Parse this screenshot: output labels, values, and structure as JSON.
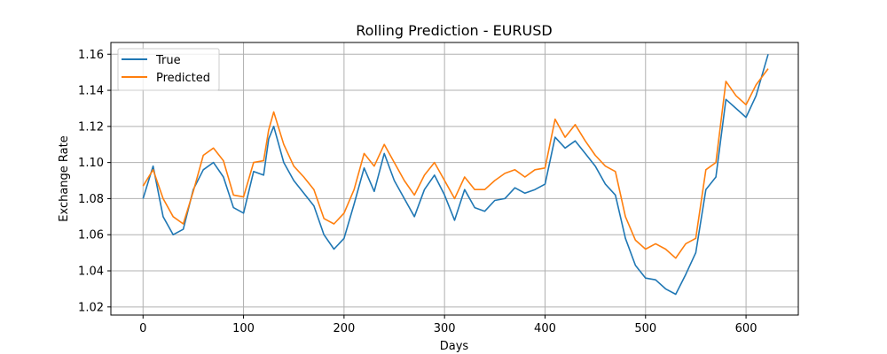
{
  "chart_data": {
    "type": "line",
    "title": "Rolling Prediction - EURUSD",
    "xlabel": "Days",
    "ylabel": "Exchange Rate",
    "xlim": [
      -32,
      652
    ],
    "ylim": [
      1.0155,
      1.1665
    ],
    "xticks": [
      0,
      100,
      200,
      300,
      400,
      500,
      600
    ],
    "yticks": [
      1.02,
      1.04,
      1.06,
      1.08,
      1.1,
      1.12,
      1.14,
      1.16
    ],
    "xtick_labels": [
      "0",
      "100",
      "200",
      "300",
      "400",
      "500",
      "600"
    ],
    "ytick_labels": [
      "1.02",
      "1.04",
      "1.06",
      "1.08",
      "1.10",
      "1.12",
      "1.14",
      "1.16"
    ],
    "grid": true,
    "legend_position": "top-left",
    "x": [
      0,
      10,
      20,
      30,
      40,
      50,
      60,
      70,
      80,
      90,
      100,
      110,
      120,
      125,
      130,
      140,
      150,
      160,
      170,
      180,
      190,
      200,
      210,
      220,
      230,
      240,
      250,
      260,
      270,
      280,
      290,
      300,
      310,
      320,
      330,
      340,
      350,
      360,
      370,
      380,
      390,
      400,
      410,
      420,
      430,
      440,
      450,
      460,
      470,
      480,
      490,
      500,
      510,
      520,
      530,
      540,
      550,
      560,
      570,
      580,
      590,
      600,
      610,
      622
    ],
    "series": [
      {
        "name": "True",
        "color": "#1f77b4",
        "values": [
          1.08,
          1.098,
          1.07,
          1.06,
          1.063,
          1.085,
          1.096,
          1.1,
          1.092,
          1.075,
          1.072,
          1.095,
          1.093,
          1.113,
          1.12,
          1.1,
          1.09,
          1.083,
          1.076,
          1.06,
          1.052,
          1.058,
          1.077,
          1.097,
          1.084,
          1.105,
          1.09,
          1.08,
          1.07,
          1.085,
          1.093,
          1.082,
          1.068,
          1.085,
          1.075,
          1.073,
          1.079,
          1.08,
          1.086,
          1.083,
          1.085,
          1.088,
          1.114,
          1.108,
          1.112,
          1.105,
          1.098,
          1.088,
          1.082,
          1.058,
          1.043,
          1.036,
          1.035,
          1.03,
          1.027,
          1.038,
          1.05,
          1.085,
          1.092,
          1.135,
          1.13,
          1.125,
          1.137,
          1.16
        ]
      },
      {
        "name": "Predicted",
        "color": "#ff7f0e",
        "values": [
          1.087,
          1.096,
          1.08,
          1.07,
          1.066,
          1.084,
          1.104,
          1.108,
          1.101,
          1.082,
          1.081,
          1.1,
          1.101,
          1.118,
          1.128,
          1.11,
          1.098,
          1.092,
          1.085,
          1.069,
          1.066,
          1.072,
          1.085,
          1.105,
          1.098,
          1.11,
          1.1,
          1.09,
          1.082,
          1.093,
          1.1,
          1.09,
          1.08,
          1.092,
          1.085,
          1.085,
          1.09,
          1.094,
          1.096,
          1.092,
          1.096,
          1.097,
          1.124,
          1.114,
          1.121,
          1.112,
          1.104,
          1.098,
          1.095,
          1.07,
          1.057,
          1.052,
          1.055,
          1.052,
          1.047,
          1.055,
          1.058,
          1.096,
          1.1,
          1.145,
          1.137,
          1.132,
          1.143,
          1.152
        ]
      }
    ]
  }
}
